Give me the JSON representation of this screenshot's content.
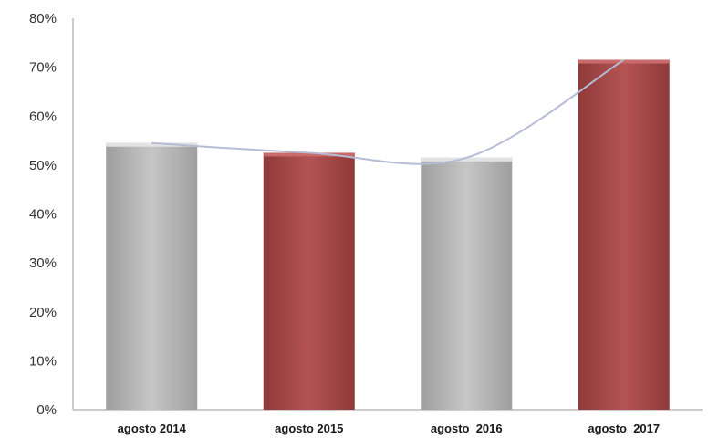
{
  "chart_data": {
    "type": "bar",
    "categories": [
      "agosto 2014",
      "agosto 2015",
      "agosto  2016",
      "agosto  2017"
    ],
    "values": [
      54.5,
      52.5,
      51.5,
      71.5
    ],
    "bar_colors": [
      "#b8b8b8",
      "#a94c4c",
      "#b8b8b8",
      "#a94c4c"
    ],
    "trendline": true,
    "ylim": [
      0,
      80
    ],
    "yticks": [
      "0%",
      "10%",
      "20%",
      "30%",
      "40%",
      "50%",
      "60%",
      "70%",
      "80%"
    ],
    "ytick_values": [
      0,
      10,
      20,
      30,
      40,
      50,
      60,
      70,
      80
    ],
    "grid": false,
    "title": "",
    "xlabel": "",
    "ylabel": ""
  },
  "colors": {
    "axis": "#9a9a9a",
    "trendline": "#b7bcd6"
  }
}
